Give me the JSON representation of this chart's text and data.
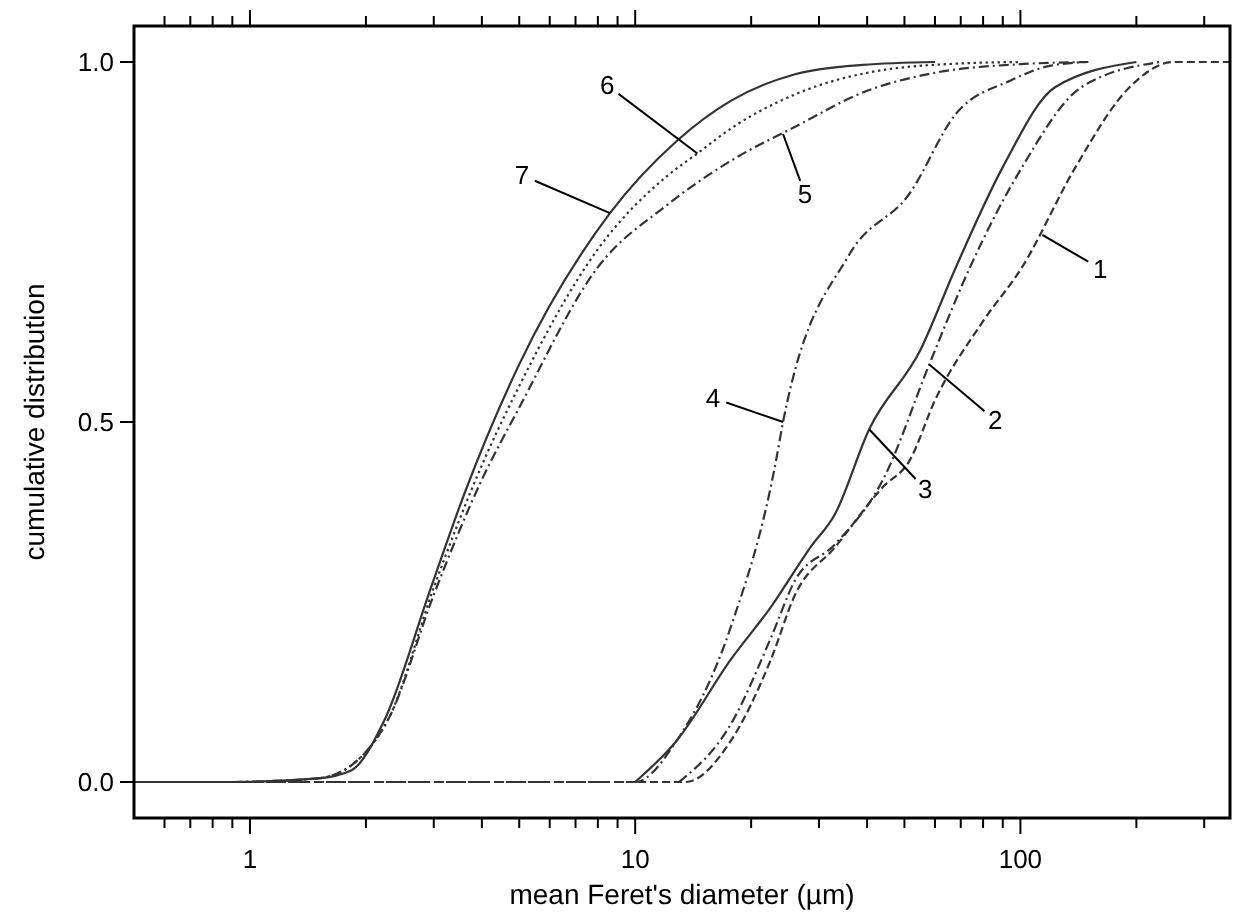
{
  "chart_data": {
    "type": "line",
    "xlabel": "mean Feret's diameter (µm)",
    "ylabel": "cumulative distribution",
    "log": "x",
    "xlim": [
      0.5,
      350
    ],
    "ylim": [
      -0.05,
      1.05
    ],
    "xticks": [
      {
        "value": 0.6,
        "label": null
      },
      {
        "value": 0.7,
        "label": null
      },
      {
        "value": 0.8,
        "label": null
      },
      {
        "value": 0.9,
        "label": null
      },
      1,
      {
        "value": 2,
        "label": null
      },
      {
        "value": 3,
        "label": null
      },
      {
        "value": 4,
        "label": null
      },
      {
        "value": 5,
        "label": null
      },
      {
        "value": 6,
        "label": null
      },
      {
        "value": 7,
        "label": null
      },
      {
        "value": 8,
        "label": null
      },
      {
        "value": 9,
        "label": null
      },
      10,
      {
        "value": 20,
        "label": null
      },
      {
        "value": 30,
        "label": null
      },
      {
        "value": 40,
        "label": null
      },
      {
        "value": 50,
        "label": null
      },
      {
        "value": 60,
        "label": null
      },
      {
        "value": 70,
        "label": null
      },
      {
        "value": 80,
        "label": null
      },
      {
        "value": 90,
        "label": null
      },
      100,
      {
        "value": 200,
        "label": null
      },
      {
        "value": 300,
        "label": null
      }
    ],
    "yticks": [
      {
        "value": 0,
        "label": "0.0"
      },
      {
        "value": 0.5,
        "label": "0.5"
      },
      {
        "value": 1,
        "label": "1.0"
      }
    ],
    "grid": false,
    "marker": "none",
    "series": [
      {
        "color": "#333333",
        "line_style": "dashed",
        "x": [
          0.5,
          13.5,
          17.7,
          22.5,
          26,
          33,
          44,
          51.5,
          60,
          80,
          101,
          139,
          192,
          250,
          350
        ],
        "values": [
          0,
          0,
          0.057,
          0.17,
          0.26,
          0.326,
          0.41,
          0.446,
          0.53,
          0.64,
          0.715,
          0.854,
          0.965,
          1,
          1
        ]
      },
      {
        "color": "#333333",
        "line_style": "dashdot",
        "x": [
          13,
          17.7,
          22.5,
          26,
          33,
          44,
          58,
          74,
          101,
          144,
          230
        ],
        "values": [
          0,
          0.08,
          0.2,
          0.28,
          0.33,
          0.42,
          0.58,
          0.715,
          0.854,
          0.965,
          1
        ]
      },
      {
        "color": "#333333",
        "line_style": "solid",
        "x": [
          10,
          12.8,
          17.7,
          22.5,
          28.5,
          33,
          40.5,
          55,
          68,
          90,
          123,
          200
        ],
        "values": [
          0,
          0.057,
          0.17,
          0.243,
          0.326,
          0.372,
          0.49,
          0.6,
          0.715,
          0.854,
          0.965,
          1
        ]
      },
      {
        "color": "#333333",
        "line_style": "dashdot",
        "x": [
          0.5,
          10,
          12.8,
          17.7,
          23.2,
          24.2,
          36,
          51.5,
          68,
          94,
          120,
          150
        ],
        "values": [
          0,
          0,
          0.057,
          0.215,
          0.446,
          0.5,
          0.733,
          0.817,
          0.928,
          0.974,
          0.995,
          1
        ]
      },
      {
        "color": "#333333",
        "line_style": "dashdot",
        "x": [
          0.9,
          1.5,
          1.9,
          2.3,
          3,
          4,
          5,
          8,
          12,
          18,
          26,
          40,
          60,
          100,
          150
        ],
        "values": [
          0,
          0.005,
          0.03,
          0.09,
          0.26,
          0.42,
          0.52,
          0.715,
          0.8,
          0.865,
          0.91,
          0.96,
          0.985,
          0.997,
          1
        ]
      },
      {
        "color": "#333333",
        "line_style": "dotted",
        "x": [
          1,
          1.5,
          1.9,
          2.3,
          3,
          4,
          5,
          8,
          12,
          14.5,
          18,
          26,
          40,
          70,
          100
        ],
        "values": [
          0,
          0.005,
          0.03,
          0.09,
          0.27,
          0.44,
          0.55,
          0.74,
          0.84,
          0.873,
          0.91,
          0.955,
          0.985,
          0.998,
          1
        ]
      },
      {
        "color": "#333333",
        "line_style": "solid",
        "x": [
          0.5,
          0.9,
          1.5,
          1.83,
          2.23,
          2.95,
          3.6,
          5,
          8.6,
          12.8,
          17.7,
          26,
          39,
          60
        ],
        "values": [
          0,
          0,
          0.005,
          0.016,
          0.085,
          0.27,
          0.4,
          0.58,
          0.79,
          0.89,
          0.946,
          0.983,
          0.996,
          1
        ]
      }
    ],
    "annotations": [
      {
        "text": "1",
        "x": 114,
        "y": 0.76
      },
      {
        "text": "2",
        "x": 58,
        "y": 0.58
      },
      {
        "text": "3",
        "x": 40.5,
        "y": 0.49
      },
      {
        "text": "4",
        "x": 24.2,
        "y": 0.5
      },
      {
        "text": "5",
        "x": 24.2,
        "y": 0.9
      },
      {
        "text": "6",
        "x": 14.5,
        "y": 0.873
      },
      {
        "text": "7",
        "x": 8.6,
        "y": 0.79
      }
    ]
  }
}
